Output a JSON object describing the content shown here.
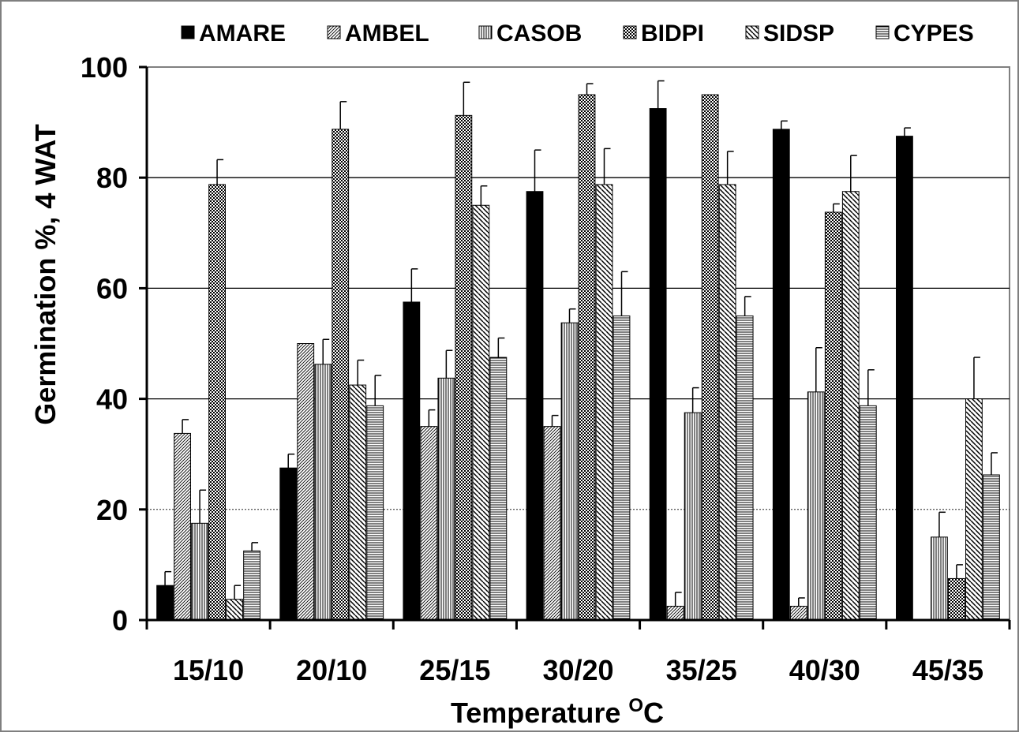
{
  "chart_data": {
    "type": "bar",
    "title": "",
    "xlabel": "Temperature",
    "xlabel_sup": "O",
    "xlabel_suffix": "C",
    "ylabel": "Germination %, 4 WAT",
    "ylim": [
      0,
      100
    ],
    "yticks": [
      0,
      20,
      40,
      60,
      80,
      100
    ],
    "grid": true,
    "legend_position": "top",
    "categories": [
      "15/10",
      "20/10",
      "25/15",
      "30/20",
      "35/25",
      "40/30",
      "45/35"
    ],
    "series": [
      {
        "name": "AMARE",
        "pattern": "solid",
        "values": [
          6.25,
          27.5,
          57.5,
          77.5,
          92.5,
          88.75,
          87.5
        ],
        "errors": [
          2.5,
          2.5,
          6.0,
          7.5,
          5.0,
          1.5,
          1.5
        ]
      },
      {
        "name": "AMBEL",
        "pattern": "diagonal-fine",
        "values": [
          33.75,
          50.0,
          35.0,
          35.0,
          2.5,
          2.5,
          null
        ],
        "errors": [
          2.5,
          0,
          3.0,
          2.0,
          2.5,
          1.5,
          null
        ]
      },
      {
        "name": "CASOB",
        "pattern": "vertical-lines",
        "values": [
          17.5,
          46.25,
          43.75,
          53.75,
          37.5,
          41.25,
          15.0
        ],
        "errors": [
          6.0,
          4.5,
          5.0,
          2.5,
          4.5,
          8.0,
          4.5
        ]
      },
      {
        "name": "BIDPI",
        "pattern": "checker",
        "values": [
          78.75,
          88.75,
          91.25,
          95.0,
          95.0,
          73.75,
          7.5
        ],
        "errors": [
          4.5,
          5.0,
          6.0,
          2.0,
          0,
          1.5,
          2.5
        ]
      },
      {
        "name": "SIDSP",
        "pattern": "diagonal-wide",
        "values": [
          3.75,
          42.5,
          75.0,
          78.75,
          78.75,
          77.5,
          40.0
        ],
        "errors": [
          2.5,
          4.5,
          3.5,
          6.5,
          6.0,
          6.5,
          7.5
        ]
      },
      {
        "name": "CYPES",
        "pattern": "horizontal-lines",
        "values": [
          12.5,
          38.75,
          47.5,
          55.0,
          55.0,
          38.75,
          26.25
        ],
        "errors": [
          1.5,
          5.5,
          3.5,
          8.0,
          3.5,
          6.5,
          4.0
        ]
      }
    ]
  }
}
